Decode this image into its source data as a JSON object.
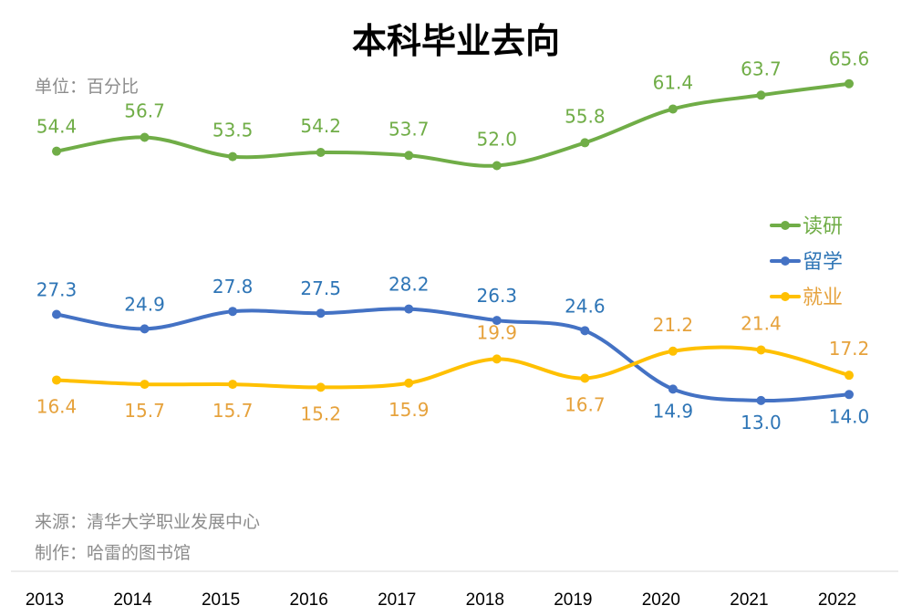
{
  "chart_data": {
    "type": "line",
    "title": "本科毕业去向",
    "unit_note": "单位：百分比",
    "source_note": "来源：清华大学职业发展中心",
    "author_note": "制作：哈雷的图书馆",
    "x": [
      "2013",
      "2014",
      "2015",
      "2016",
      "2017",
      "2018",
      "2019",
      "2020",
      "2021",
      "2022"
    ],
    "ylim": [
      0,
      70
    ],
    "grid": false,
    "legend_position": "right",
    "series": [
      {
        "name": "读研",
        "color": "#70ad47",
        "label_color": "#70ad47",
        "values": [
          54.4,
          56.7,
          53.5,
          54.2,
          53.7,
          52.0,
          55.8,
          61.4,
          63.7,
          65.6
        ],
        "labels": [
          "54.4",
          "56.7",
          "53.5",
          "54.2",
          "53.7",
          "52.0",
          "55.8",
          "61.4",
          "63.7",
          "65.6"
        ]
      },
      {
        "name": "留学",
        "color": "#4472c4",
        "label_color": "#2e75b6",
        "values": [
          27.3,
          24.9,
          27.8,
          27.5,
          28.2,
          26.3,
          24.6,
          14.9,
          13.0,
          14.0
        ],
        "labels": [
          "27.3",
          "24.9",
          "27.8",
          "27.5",
          "28.2",
          "26.3",
          "24.6",
          "14.9",
          "13.0",
          "14.0"
        ]
      },
      {
        "name": "就业",
        "color": "#ffc000",
        "label_color": "#e6a23c",
        "values": [
          16.4,
          15.7,
          15.7,
          15.2,
          15.9,
          19.9,
          16.7,
          21.2,
          21.4,
          17.2
        ],
        "labels": [
          "16.4",
          "15.7",
          "15.7",
          "15.2",
          "15.9",
          "19.9",
          "16.7",
          "21.2",
          "21.4",
          "17.2"
        ]
      }
    ]
  }
}
